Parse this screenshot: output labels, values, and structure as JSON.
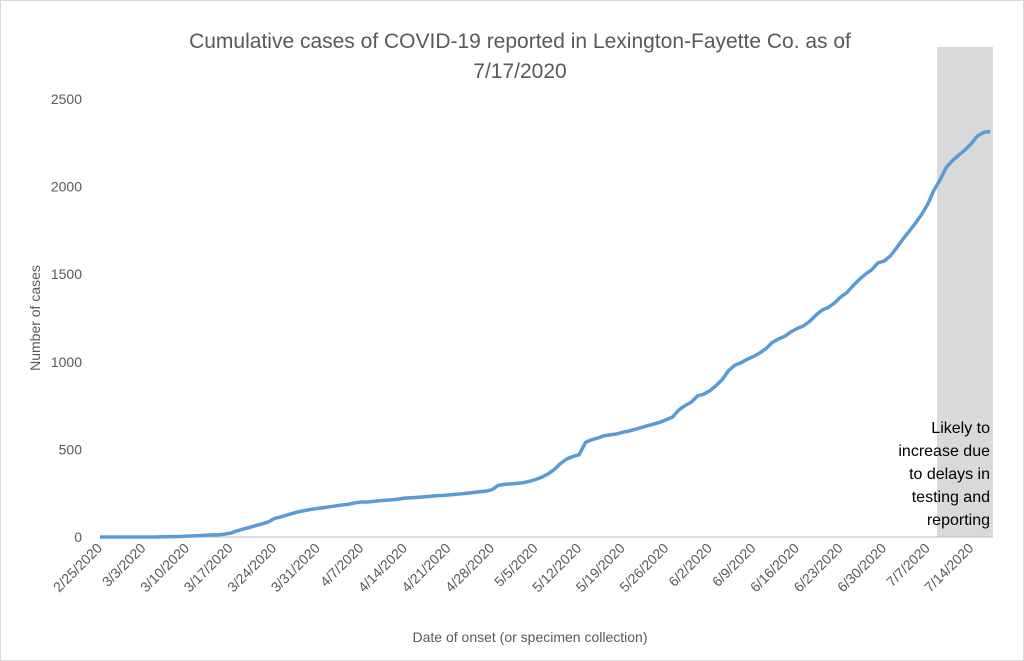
{
  "chart_data": {
    "type": "line",
    "title": [
      "Cumulative cases of COVID-19 reported in Lexington-Fayette Co.  as of",
      "7/17/2020"
    ],
    "x_label": "Date of onset (or specimen collection)",
    "y_label": "Number of cases",
    "annotation": [
      "Likely to",
      "increase due",
      "to delays in",
      "testing and",
      "reporting"
    ],
    "categories": [
      "2/25/2020",
      null,
      null,
      null,
      null,
      null,
      null,
      "3/3/2020",
      null,
      null,
      null,
      null,
      null,
      null,
      "3/10/2020",
      null,
      null,
      null,
      null,
      null,
      null,
      "3/17/2020",
      null,
      null,
      null,
      null,
      null,
      null,
      "3/24/2020",
      null,
      null,
      null,
      null,
      null,
      null,
      "3/31/2020",
      null,
      null,
      null,
      null,
      null,
      null,
      "4/7/2020",
      null,
      null,
      null,
      null,
      null,
      null,
      "4/14/2020",
      null,
      null,
      null,
      null,
      null,
      null,
      "4/21/2020",
      null,
      null,
      null,
      null,
      null,
      null,
      "4/28/2020",
      null,
      null,
      null,
      null,
      null,
      null,
      "5/5/2020",
      null,
      null,
      null,
      null,
      null,
      null,
      "5/12/2020",
      null,
      null,
      null,
      null,
      null,
      null,
      "5/19/2020",
      null,
      null,
      null,
      null,
      null,
      null,
      "5/26/2020",
      null,
      null,
      null,
      null,
      null,
      null,
      "6/2/2020",
      null,
      null,
      null,
      null,
      null,
      null,
      "6/9/2020",
      null,
      null,
      null,
      null,
      null,
      null,
      "6/16/2020",
      null,
      null,
      null,
      null,
      null,
      null,
      "6/23/2020",
      null,
      null,
      null,
      null,
      null,
      null,
      "6/30/2020",
      null,
      null,
      null,
      null,
      null,
      null,
      "7/7/2020",
      null,
      null,
      null,
      null,
      null,
      null,
      "7/14/2020",
      null,
      null,
      null
    ],
    "series": [
      {
        "color": "#5b9bd5",
        "values": [
          0,
          0,
          0,
          0,
          0,
          0,
          0,
          0,
          0,
          0,
          1,
          1,
          2,
          3,
          5,
          6,
          8,
          10,
          12,
          13,
          16,
          22,
          35,
          45,
          55,
          65,
          75,
          85,
          105,
          115,
          125,
          135,
          145,
          152,
          158,
          163,
          168,
          173,
          178,
          183,
          188,
          195,
          200,
          200,
          203,
          207,
          210,
          213,
          217,
          222,
          224,
          226,
          229,
          232,
          235,
          237,
          240,
          243,
          246,
          250,
          254,
          258,
          262,
          270,
          295,
          300,
          303,
          306,
          310,
          318,
          328,
          342,
          360,
          385,
          420,
          445,
          460,
          470,
          540,
          555,
          565,
          578,
          583,
          588,
          598,
          605,
          615,
          625,
          635,
          645,
          655,
          670,
          685,
          725,
          750,
          770,
          805,
          815,
          835,
          865,
          900,
          950,
          980,
          995,
          1015,
          1030,
          1050,
          1075,
          1110,
          1130,
          1145,
          1170,
          1190,
          1205,
          1230,
          1265,
          1295,
          1310,
          1335,
          1370,
          1395,
          1435,
          1470,
          1500,
          1525,
          1565,
          1575,
          1605,
          1650,
          1700,
          1745,
          1790,
          1840,
          1900,
          1980,
          2040,
          2110,
          2150,
          2180,
          2210,
          2245,
          2290,
          2310,
          2315
        ]
      }
    ],
    "ylim": [
      0,
      2500
    ],
    "yticks": [
      0,
      500,
      1000,
      1500,
      2000,
      2500
    ],
    "grid": false
  }
}
